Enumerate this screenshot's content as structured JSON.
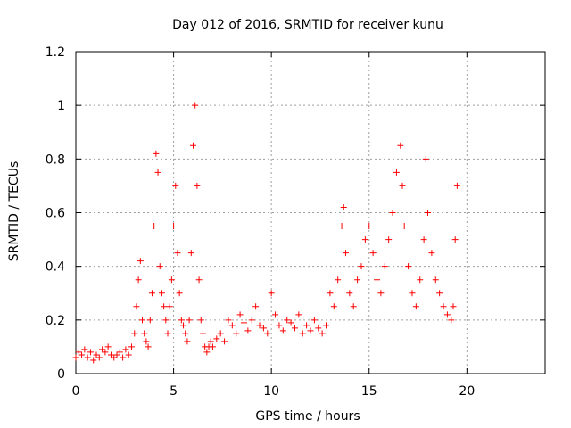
{
  "chart_data": {
    "type": "scatter",
    "title": "Day 012 of 2016, SRMTID for receiver kunu",
    "xlabel": "GPS time / hours",
    "ylabel": "SRMTID / TECUs",
    "xlim": [
      0,
      24
    ],
    "ylim": [
      0,
      1.2
    ],
    "x_ticks": [
      0,
      5,
      10,
      15,
      20
    ],
    "x_tick_labels": [
      "0",
      "5",
      "10",
      "15",
      "20"
    ],
    "y_ticks": [
      0,
      0.2,
      0.4,
      0.6,
      0.8,
      1.0,
      1.2
    ],
    "y_tick_labels": [
      "0",
      "0.2",
      "0.4",
      "0.6",
      "0.8",
      "1",
      "1.2"
    ],
    "grid": true,
    "marker": "+",
    "series": [
      {
        "name": "SRMTID",
        "color": "#ff0000",
        "x": [
          0.0,
          0.15,
          0.3,
          0.45,
          0.6,
          0.75,
          0.9,
          1.05,
          1.2,
          1.35,
          1.5,
          1.65,
          1.8,
          1.95,
          2.1,
          2.25,
          2.4,
          2.55,
          2.7,
          2.85,
          3.0,
          3.1,
          3.2,
          3.3,
          3.4,
          3.5,
          3.6,
          3.7,
          3.8,
          3.9,
          4.0,
          4.1,
          4.2,
          4.3,
          4.4,
          4.5,
          4.6,
          4.7,
          4.8,
          4.9,
          5.0,
          5.1,
          5.2,
          5.3,
          5.4,
          5.5,
          5.6,
          5.7,
          5.8,
          5.9,
          6.0,
          6.1,
          6.2,
          6.3,
          6.4,
          6.5,
          6.6,
          6.7,
          6.8,
          6.9,
          7.0,
          7.2,
          7.4,
          7.6,
          7.8,
          8.0,
          8.2,
          8.4,
          8.6,
          8.8,
          9.0,
          9.2,
          9.4,
          9.6,
          9.8,
          10.0,
          10.2,
          10.4,
          10.6,
          10.8,
          11.0,
          11.2,
          11.4,
          11.6,
          11.8,
          12.0,
          12.2,
          12.4,
          12.6,
          12.8,
          13.0,
          13.2,
          13.4,
          13.6,
          13.7,
          13.8,
          14.0,
          14.2,
          14.4,
          14.6,
          14.8,
          15.0,
          15.2,
          15.4,
          15.6,
          15.8,
          16.0,
          16.2,
          16.4,
          16.6,
          16.7,
          16.8,
          17.0,
          17.2,
          17.4,
          17.6,
          17.8,
          17.9,
          18.0,
          18.2,
          18.4,
          18.6,
          18.8,
          19.0,
          19.2,
          19.3,
          19.4,
          19.5
        ],
        "y": [
          0.06,
          0.08,
          0.07,
          0.09,
          0.06,
          0.08,
          0.05,
          0.07,
          0.06,
          0.09,
          0.08,
          0.1,
          0.07,
          0.06,
          0.07,
          0.08,
          0.06,
          0.09,
          0.07,
          0.1,
          0.15,
          0.25,
          0.35,
          0.42,
          0.2,
          0.15,
          0.12,
          0.1,
          0.2,
          0.3,
          0.55,
          0.82,
          0.75,
          0.4,
          0.3,
          0.25,
          0.2,
          0.15,
          0.25,
          0.35,
          0.55,
          0.7,
          0.45,
          0.3,
          0.2,
          0.18,
          0.15,
          0.12,
          0.2,
          0.45,
          0.85,
          1.0,
          0.7,
          0.35,
          0.2,
          0.15,
          0.1,
          0.08,
          0.1,
          0.12,
          0.1,
          0.13,
          0.15,
          0.12,
          0.2,
          0.18,
          0.15,
          0.22,
          0.19,
          0.16,
          0.2,
          0.25,
          0.18,
          0.17,
          0.15,
          0.3,
          0.22,
          0.18,
          0.16,
          0.2,
          0.19,
          0.17,
          0.22,
          0.15,
          0.18,
          0.16,
          0.2,
          0.17,
          0.15,
          0.18,
          0.3,
          0.25,
          0.35,
          0.55,
          0.62,
          0.45,
          0.3,
          0.25,
          0.35,
          0.4,
          0.5,
          0.55,
          0.45,
          0.35,
          0.3,
          0.4,
          0.5,
          0.6,
          0.75,
          0.85,
          0.7,
          0.55,
          0.4,
          0.3,
          0.25,
          0.35,
          0.5,
          0.8,
          0.6,
          0.45,
          0.35,
          0.3,
          0.25,
          0.22,
          0.2,
          0.25,
          0.5,
          0.7
        ]
      }
    ]
  }
}
